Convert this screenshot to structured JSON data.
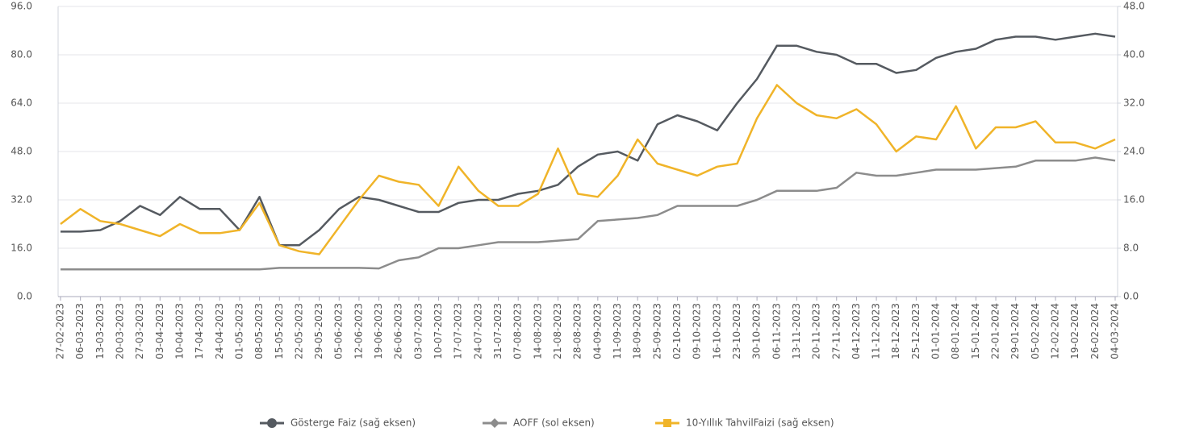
{
  "chart_data": {
    "type": "line",
    "categories": [
      "27-02-2023",
      "06-03-2023",
      "13-03-2023",
      "20-03-2023",
      "27-03-2023",
      "03-04-2023",
      "10-04-2023",
      "17-04-2023",
      "24-04-2023",
      "01-05-2023",
      "08-05-2023",
      "15-05-2023",
      "22-05-2023",
      "29-05-2023",
      "05-06-2023",
      "12-06-2023",
      "19-06-2023",
      "26-06-2023",
      "03-07-2023",
      "10-07-2023",
      "17-07-2023",
      "24-07-2023",
      "31-07-2023",
      "07-08-2023",
      "14-08-2023",
      "21-08-2023",
      "28-08-2023",
      "04-09-2023",
      "11-09-2023",
      "18-09-2023",
      "25-09-2023",
      "02-10-2023",
      "09-10-2023",
      "16-10-2023",
      "23-10-2023",
      "30-10-2023",
      "06-11-2023",
      "13-11-2023",
      "20-11-2023",
      "27-11-2023",
      "04-12-2023",
      "11-12-2023",
      "18-12-2023",
      "25-12-2023",
      "01-01-2024",
      "08-01-2024",
      "15-01-2024",
      "22-01-2024",
      "29-01-2024",
      "05-02-2024",
      "12-02-2024",
      "19-02-2024",
      "26-02-2024",
      "04-03-2024"
    ],
    "series": [
      {
        "name": "Gösterge Faiz (sağ eksen)",
        "color": "#555a60",
        "axis": "y2",
        "marker": "circle",
        "values": [
          10.75,
          10.75,
          11,
          12.5,
          15,
          13.5,
          16.5,
          14.5,
          14.5,
          11,
          16.5,
          8.5,
          8.5,
          11,
          14.5,
          16.5,
          16,
          15,
          14,
          14,
          15.5,
          16,
          16,
          17,
          17.5,
          18.5,
          21.5,
          23.5,
          24,
          22.5,
          28.5,
          30,
          29,
          27.5,
          32,
          36,
          41.5,
          41.5,
          40.5,
          40,
          38.5,
          38.5,
          37,
          37.5,
          39.5,
          40.5,
          41,
          42.5,
          43,
          43,
          42.5,
          43,
          43.5,
          43
        ]
      },
      {
        "name": "AOFF (sol eksen)",
        "color": "#8c8c8c",
        "marker": "diamond",
        "values": [
          9,
          9,
          9,
          9,
          9,
          9,
          9,
          9,
          9,
          9,
          9,
          9.5,
          9.5,
          9.5,
          9.5,
          9.5,
          9.3,
          12,
          13,
          16,
          16,
          17,
          18,
          18,
          18,
          18.5,
          19,
          25,
          25.5,
          26,
          27,
          30,
          30,
          30,
          30,
          32,
          35,
          35,
          35,
          36,
          41,
          40,
          40,
          41,
          42,
          42,
          42,
          42.5,
          43,
          45,
          45,
          45,
          46,
          45
        ]
      },
      {
        "name": "10-Yıllık TahvilFaizi (sağ eksen)",
        "color": "#f0b429",
        "axis": "y2",
        "marker": "square",
        "values": [
          12,
          14.5,
          12.5,
          12,
          11,
          10,
          12,
          10.5,
          10.5,
          11,
          15.5,
          8.5,
          7.5,
          7,
          11.5,
          16,
          20,
          19,
          18.5,
          15,
          21.5,
          17.5,
          15,
          15,
          17,
          24.5,
          17,
          16.5,
          20,
          26,
          22,
          21,
          20,
          21.5,
          22,
          29.5,
          35,
          32,
          30,
          29.5,
          31,
          28.5,
          24,
          26.5,
          26,
          31.5,
          24.5,
          28,
          28,
          29,
          25.5,
          25.5,
          24.5,
          26
        ]
      }
    ],
    "ylim": [
      0,
      96
    ],
    "yticks": [
      {
        "value": 0,
        "label": "0.0"
      },
      {
        "value": 16,
        "label": "16.0"
      },
      {
        "value": 32,
        "label": "32.0"
      },
      {
        "value": 48,
        "label": "48.0"
      },
      {
        "value": 64,
        "label": "64.0"
      },
      {
        "value": 80,
        "label": "80.0"
      },
      {
        "value": 96,
        "label": "96.0"
      }
    ],
    "y2lim": [
      0,
      48
    ],
    "y2ticks": [
      {
        "value": 0,
        "label": "0.0"
      },
      {
        "value": 8,
        "label": "8.0"
      },
      {
        "value": 16,
        "label": "16.0"
      },
      {
        "value": 24,
        "label": "24.0"
      },
      {
        "value": 32,
        "label": "32.0"
      },
      {
        "value": 40,
        "label": "40.0"
      },
      {
        "value": 48,
        "label": "48.0"
      }
    ],
    "grid": true,
    "legend": "bottom"
  }
}
